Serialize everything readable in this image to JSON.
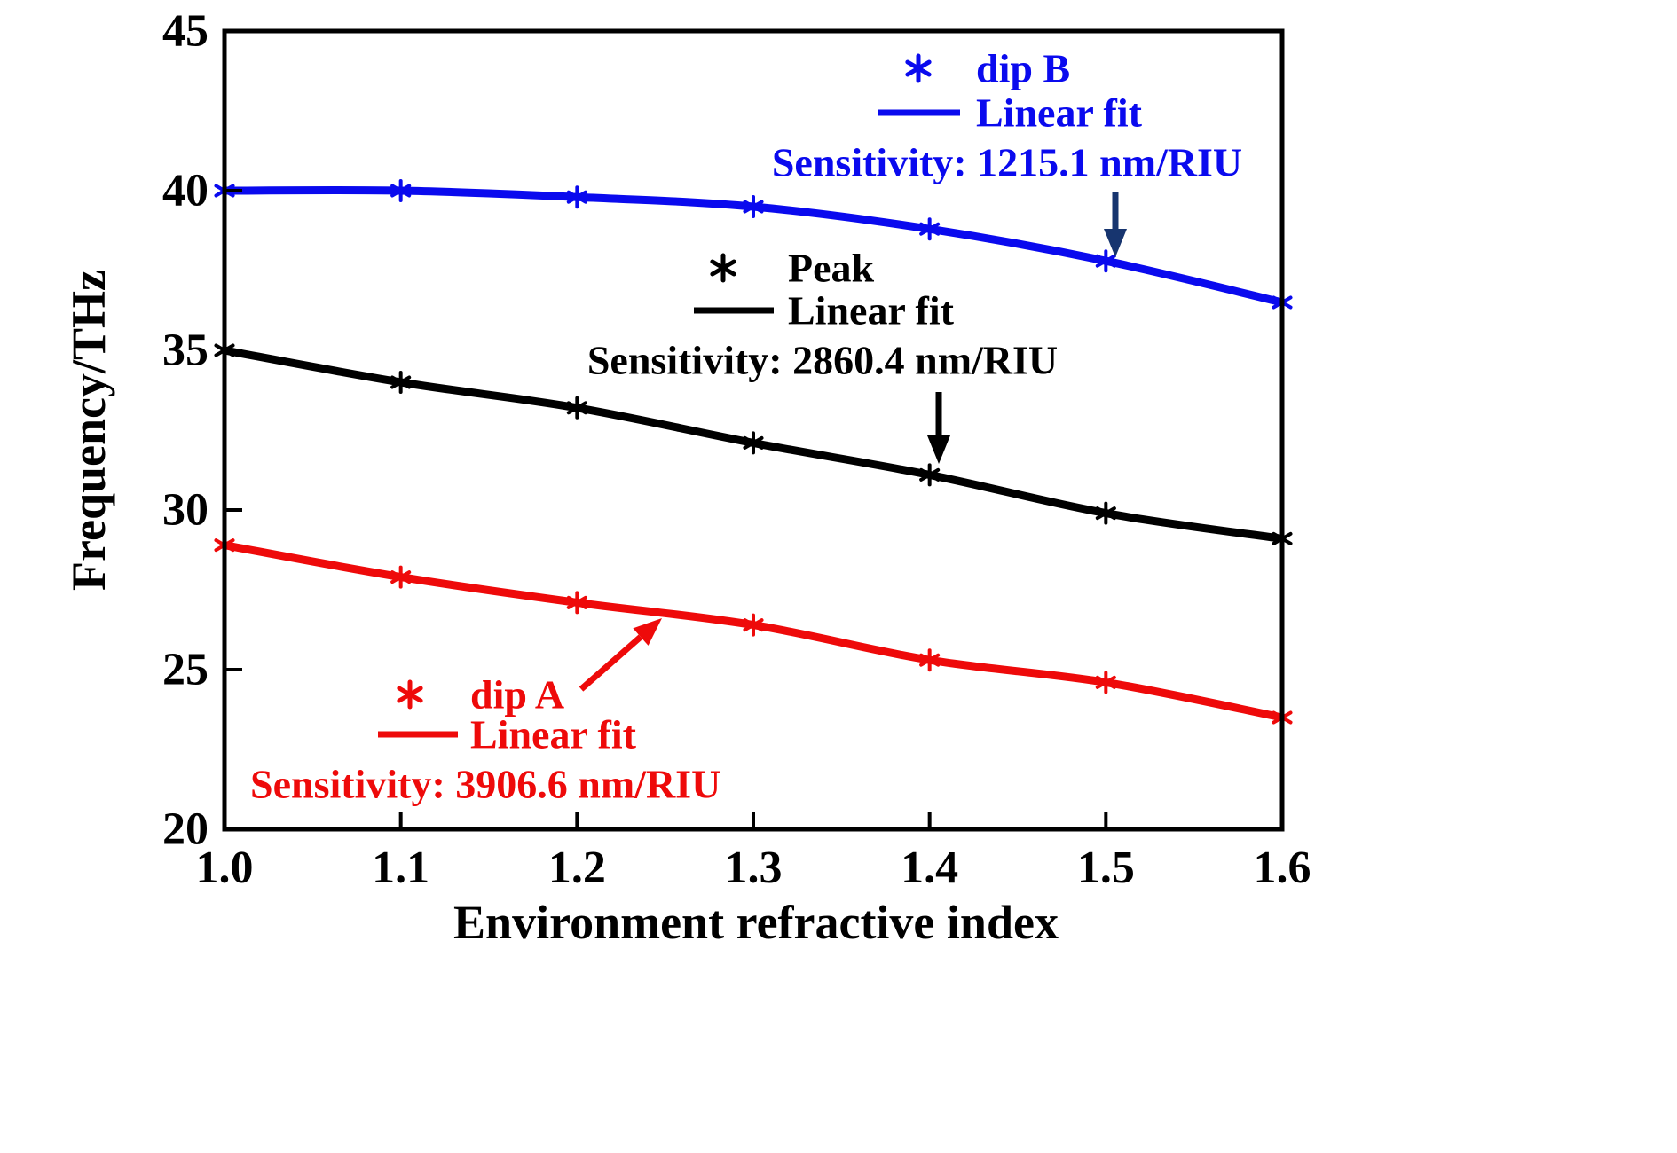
{
  "chart_data": {
    "type": "line",
    "title": "",
    "xlabel": "Environment refractive index",
    "ylabel": "Frequency/THz",
    "xlim": [
      1.0,
      1.6
    ],
    "ylim": [
      20,
      45
    ],
    "xticks": [
      "1.0",
      "1.1",
      "1.2",
      "1.3",
      "1.4",
      "1.5",
      "1.6"
    ],
    "yticks": [
      "20",
      "25",
      "30",
      "35",
      "40",
      "45"
    ],
    "grid": false,
    "legend_position": "inside-plot",
    "x": [
      1.0,
      1.1,
      1.2,
      1.3,
      1.4,
      1.5,
      1.6
    ],
    "series": [
      {
        "name": "dip B",
        "color": "#0a0aee",
        "marker": "asterisk",
        "values": [
          40.0,
          40.0,
          39.8,
          39.5,
          38.8,
          37.8,
          36.5
        ],
        "legend": {
          "marker_label": "dip B",
          "line_label": "Linear fit",
          "sensitivity": "Sensitivity:  1215.1 nm/RIU"
        },
        "arrow_color": "#17356f"
      },
      {
        "name": "Peak",
        "color": "#000000",
        "marker": "asterisk",
        "values": [
          35.0,
          34.0,
          33.2,
          32.1,
          31.1,
          29.9,
          29.1
        ],
        "legend": {
          "marker_label": "Peak",
          "line_label": "Linear fit",
          "sensitivity": "Sensitivity:  2860.4 nm/RIU"
        },
        "arrow_color": "#000000"
      },
      {
        "name": "dip A",
        "color": "#ee0a0a",
        "marker": "asterisk",
        "values": [
          28.9,
          27.9,
          27.1,
          26.4,
          25.3,
          24.6,
          23.5
        ],
        "legend": {
          "marker_label": "dip A",
          "line_label": "Linear fit",
          "sensitivity": "Sensitivity:  3906.6 nm/RIU"
        },
        "arrow_color": "#ee0a0a"
      }
    ]
  }
}
